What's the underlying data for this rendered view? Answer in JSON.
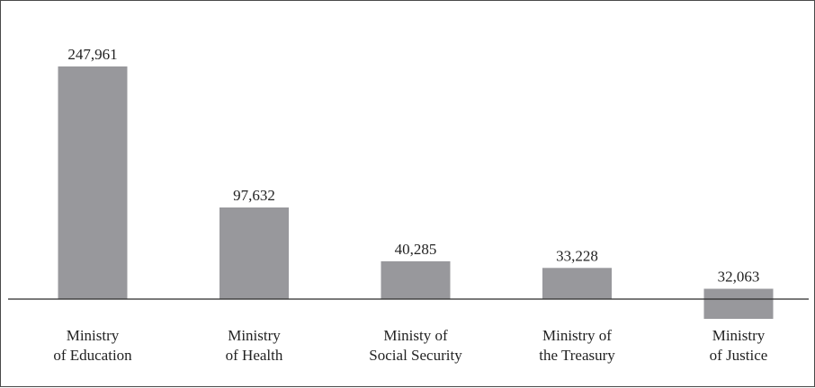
{
  "chart_data": {
    "type": "bar",
    "categories": [
      [
        "Ministry",
        "of Education"
      ],
      [
        "Ministry",
        "of Health"
      ],
      [
        "Ministy of",
        "Social Security"
      ],
      [
        "Ministry of",
        "the Treasury"
      ],
      [
        "Ministry",
        "of Justice"
      ]
    ],
    "values": [
      247961,
      97632,
      40285,
      33228,
      32063
    ],
    "value_labels": [
      "247,961",
      "97,632",
      "40,285",
      "33,228",
      "32,063"
    ],
    "title": "",
    "xlabel": "",
    "ylabel": "",
    "ylim": [
      0,
      260000
    ],
    "grid": false,
    "legend": "none",
    "colors": {
      "bar": "#98989c",
      "text": "#222222",
      "axis": "#2b2b2b"
    }
  }
}
